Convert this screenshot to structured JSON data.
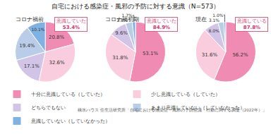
{
  "chart_data": {
    "type": "pie",
    "title": "自宅における感染症・風邪の予防に対する意識（N=573）",
    "categories": [
      "十分に意識している（していた）",
      "少し意識している（していた）",
      "どちらでもない",
      "あまり意識していない（していなかった）",
      "意識していない（していなかった）"
    ],
    "colors": [
      "#f08cb4",
      "#f9cddd",
      "#d2c4e6",
      "#b9cde8",
      "#7fb2e3"
    ],
    "data_labels": true,
    "legend": "bottom",
    "series": [
      {
        "name": "コロナ禍前",
        "values": [
          20.8,
          32.6,
          17.1,
          19.4,
          10.1
        ],
        "value_labels": [
          "20.8%",
          "32.6%",
          "17.1%",
          "19.4%",
          "10.1%"
        ],
        "callout": {
          "label": "意識していた",
          "value": 53.4,
          "value_label": "53.4%"
        }
      },
      {
        "name": "コロナ禍初期",
        "values": [
          53.1,
          31.8,
          9.6,
          3.8,
          1.7
        ],
        "value_labels": [
          "53.1%",
          "31.8%",
          "9.6%",
          "3.8%",
          "1.7%"
        ],
        "callout": {
          "label": "意識していた",
          "value": 84.9,
          "value_label": "84.9%"
        }
      },
      {
        "name": "現在",
        "values": [
          56.2,
          31.6,
          8.0,
          3.1,
          1.0
        ],
        "value_labels": [
          "56.2%",
          "31.6%",
          "8.0%",
          "3.1%",
          "1.0%"
        ],
        "callout": {
          "label": "意識している",
          "value": 87.8,
          "value_label": "87.8%"
        }
      }
    ],
    "source": "積水ハウス 住生活研究所「自宅における感染症・風邪の予防意識・行動に関する調査（2022年）」"
  }
}
